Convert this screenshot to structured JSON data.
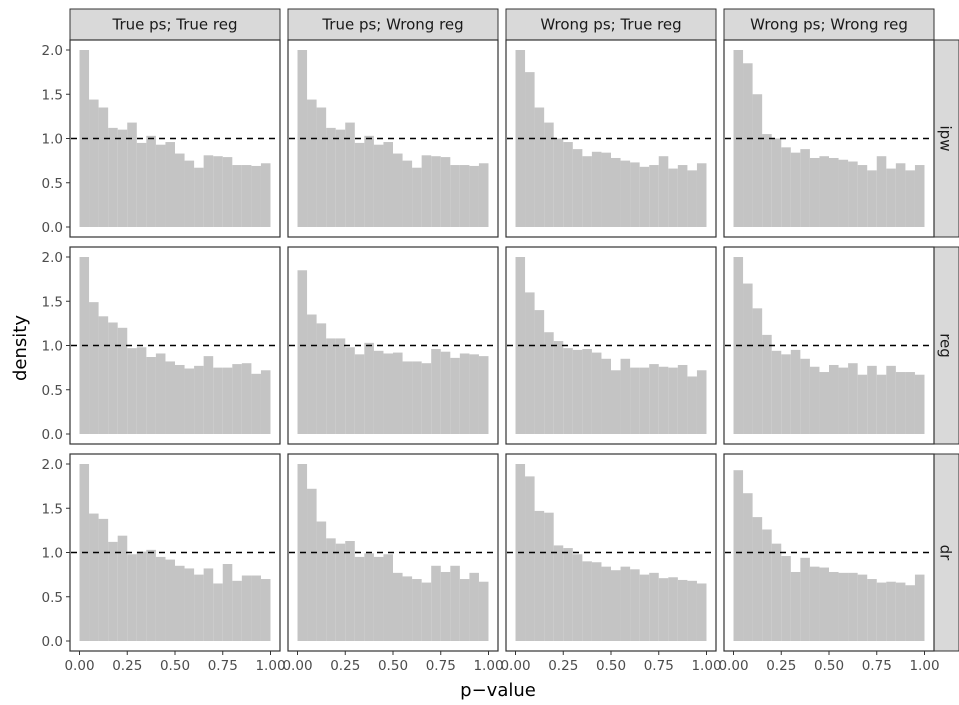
{
  "chart_data": {
    "type": "bar",
    "subtype": "faceted-histogram",
    "title": "",
    "xlabel": "p−value",
    "ylabel": "density",
    "xlim": [
      0,
      1
    ],
    "ylim": [
      0,
      2.0
    ],
    "x_ticks": [
      "0.00",
      "0.25",
      "0.50",
      "0.75",
      "1.00"
    ],
    "y_ticks": [
      "0.0",
      "0.5",
      "1.0",
      "1.5",
      "2.0"
    ],
    "x_tick_values": [
      0,
      0.25,
      0.5,
      0.75,
      1.0
    ],
    "y_tick_values": [
      0,
      0.5,
      1.0,
      1.5,
      2.0
    ],
    "bin_width": 0.05,
    "bin_starts": [
      0.0,
      0.05,
      0.1,
      0.15,
      0.2,
      0.25,
      0.3,
      0.35,
      0.4,
      0.45,
      0.5,
      0.55,
      0.6,
      0.65,
      0.7,
      0.75,
      0.8,
      0.85,
      0.9,
      0.95
    ],
    "reference_line": {
      "y": 1.0,
      "style": "dashed"
    },
    "grid": false,
    "columns": [
      "True ps; True reg",
      "True ps; Wrong reg",
      "Wrong ps; True reg",
      "Wrong ps; Wrong reg"
    ],
    "rows": [
      "ipw",
      "reg",
      "dr"
    ],
    "bar_color": "#c4c4c4",
    "strip_color": "#d9d9d9",
    "panels": [
      {
        "row": "ipw",
        "column": "True ps; True reg",
        "values": [
          2.0,
          1.44,
          1.35,
          1.12,
          1.1,
          1.18,
          0.95,
          1.03,
          0.93,
          0.96,
          0.83,
          0.75,
          0.67,
          0.81,
          0.8,
          0.79,
          0.7,
          0.7,
          0.69,
          0.72
        ]
      },
      {
        "row": "ipw",
        "column": "True ps; Wrong reg",
        "values": [
          2.0,
          1.44,
          1.35,
          1.12,
          1.1,
          1.18,
          0.95,
          1.03,
          0.93,
          0.96,
          0.83,
          0.75,
          0.67,
          0.81,
          0.8,
          0.79,
          0.7,
          0.7,
          0.69,
          0.72
        ]
      },
      {
        "row": "ipw",
        "column": "Wrong ps; True reg",
        "values": [
          2.0,
          1.75,
          1.35,
          1.18,
          1.0,
          0.96,
          0.88,
          0.8,
          0.85,
          0.84,
          0.78,
          0.75,
          0.73,
          0.68,
          0.7,
          0.8,
          0.66,
          0.7,
          0.64,
          0.72
        ]
      },
      {
        "row": "ipw",
        "column": "Wrong ps; Wrong reg",
        "values": [
          2.0,
          1.85,
          1.5,
          1.05,
          1.0,
          0.9,
          0.84,
          0.88,
          0.78,
          0.8,
          0.78,
          0.76,
          0.74,
          0.7,
          0.64,
          0.8,
          0.66,
          0.72,
          0.64,
          0.7
        ]
      },
      {
        "row": "reg",
        "column": "True ps; True reg",
        "values": [
          2.0,
          1.49,
          1.33,
          1.26,
          1.2,
          0.97,
          0.98,
          0.87,
          0.91,
          0.82,
          0.78,
          0.74,
          0.77,
          0.88,
          0.75,
          0.75,
          0.79,
          0.8,
          0.68,
          0.72
        ]
      },
      {
        "row": "reg",
        "column": "True ps; Wrong reg",
        "values": [
          1.85,
          1.35,
          1.25,
          1.08,
          1.08,
          0.98,
          0.9,
          1.03,
          0.94,
          0.91,
          0.92,
          0.82,
          0.82,
          0.8,
          0.96,
          0.93,
          0.86,
          0.91,
          0.9,
          0.88
        ]
      },
      {
        "row": "reg",
        "column": "Wrong ps; True reg",
        "values": [
          2.0,
          1.6,
          1.4,
          1.15,
          1.05,
          0.97,
          0.95,
          0.96,
          0.92,
          0.85,
          0.72,
          0.85,
          0.75,
          0.75,
          0.79,
          0.76,
          0.75,
          0.78,
          0.65,
          0.72
        ]
      },
      {
        "row": "reg",
        "column": "Wrong ps; Wrong reg",
        "values": [
          2.0,
          1.7,
          1.42,
          1.12,
          0.94,
          0.9,
          0.95,
          0.85,
          0.76,
          0.7,
          0.78,
          0.75,
          0.8,
          0.67,
          0.77,
          0.67,
          0.77,
          0.7,
          0.7,
          0.67
        ]
      },
      {
        "row": "dr",
        "column": "True ps; True reg",
        "values": [
          2.0,
          1.44,
          1.38,
          1.12,
          1.19,
          0.98,
          1.01,
          1.03,
          0.95,
          0.92,
          0.85,
          0.82,
          0.75,
          0.82,
          0.65,
          0.87,
          0.68,
          0.74,
          0.74,
          0.7
        ]
      },
      {
        "row": "dr",
        "column": "True ps; Wrong reg",
        "values": [
          2.0,
          1.72,
          1.35,
          1.16,
          1.1,
          1.13,
          0.95,
          0.99,
          0.95,
          0.98,
          0.77,
          0.73,
          0.7,
          0.66,
          0.85,
          0.78,
          0.85,
          0.7,
          0.77,
          0.67
        ]
      },
      {
        "row": "dr",
        "column": "Wrong ps; True reg",
        "values": [
          2.0,
          1.86,
          1.47,
          1.45,
          1.08,
          1.05,
          0.98,
          0.9,
          0.89,
          0.84,
          0.8,
          0.84,
          0.81,
          0.75,
          0.77,
          0.71,
          0.72,
          0.69,
          0.68,
          0.65
        ]
      },
      {
        "row": "dr",
        "column": "Wrong ps; Wrong reg",
        "values": [
          1.93,
          1.67,
          1.4,
          1.26,
          1.1,
          0.96,
          0.78,
          0.94,
          0.84,
          0.83,
          0.78,
          0.77,
          0.77,
          0.75,
          0.7,
          0.66,
          0.67,
          0.66,
          0.63,
          0.75
        ]
      }
    ]
  }
}
